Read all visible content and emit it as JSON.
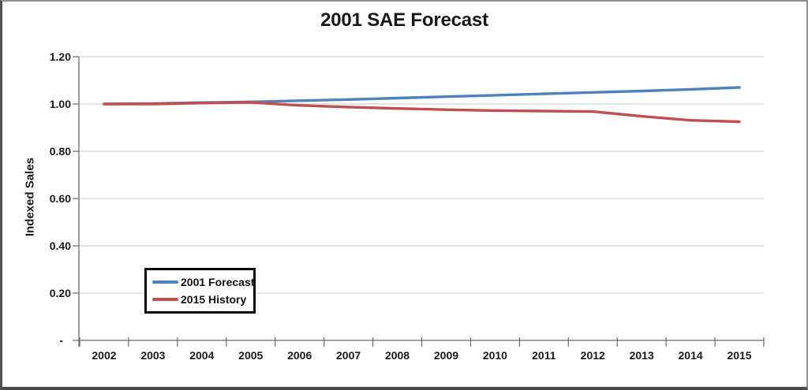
{
  "chart_data": {
    "type": "line",
    "title": "2001 SAE Forecast",
    "xlabel": "",
    "ylabel": "Indexed Sales",
    "categories": [
      "2002",
      "2003",
      "2004",
      "2005",
      "2006",
      "2007",
      "2008",
      "2009",
      "2010",
      "2011",
      "2012",
      "2013",
      "2014",
      "2015"
    ],
    "series": [
      {
        "name": "2001 Forecast",
        "color": "#4F81BD",
        "values": [
          1.0,
          1.002,
          1.006,
          1.009,
          1.014,
          1.019,
          1.025,
          1.031,
          1.037,
          1.043,
          1.049,
          1.055,
          1.062,
          1.07
        ]
      },
      {
        "name": "2015 History",
        "color": "#C0504D",
        "values": [
          1.0,
          1.0,
          1.004,
          1.007,
          0.994,
          0.987,
          0.981,
          0.976,
          0.972,
          0.97,
          0.968,
          0.948,
          0.931,
          0.925
        ]
      }
    ],
    "ylim": [
      0,
      1.2
    ],
    "yticks": {
      "values": [
        0,
        0.2,
        0.4,
        0.6,
        0.8,
        1.0,
        1.2
      ],
      "labels": [
        "-",
        "0.20",
        "0.40",
        "0.60",
        "0.80",
        "1.00",
        "1.20"
      ]
    },
    "grid": true,
    "legend_position": "inside-lower-left",
    "style": {
      "gridline_color": "#c9c9c9",
      "axis_color": "#686868",
      "tick_label_color": "#1a1a1a",
      "line_width": 3.4
    }
  }
}
